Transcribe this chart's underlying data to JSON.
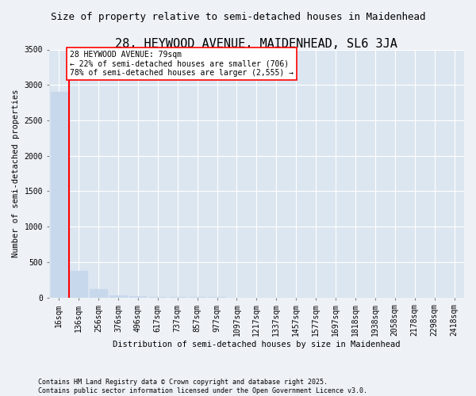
{
  "title": "28, HEYWOOD AVENUE, MAIDENHEAD, SL6 3JA",
  "subtitle": "Size of property relative to semi-detached houses in Maidenhead",
  "xlabel": "Distribution of semi-detached houses by size in Maidenhead",
  "ylabel": "Number of semi-detached properties",
  "categories": [
    "16sqm",
    "136sqm",
    "256sqm",
    "376sqm",
    "496sqm",
    "617sqm",
    "737sqm",
    "857sqm",
    "977sqm",
    "1097sqm",
    "1217sqm",
    "1337sqm",
    "1457sqm",
    "1577sqm",
    "1697sqm",
    "1818sqm",
    "1938sqm",
    "2058sqm",
    "2178sqm",
    "2298sqm",
    "2418sqm"
  ],
  "values": [
    2900,
    380,
    120,
    30,
    15,
    8,
    5,
    4,
    3,
    2,
    2,
    2,
    1,
    1,
    1,
    1,
    1,
    1,
    1,
    1,
    1
  ],
  "bar_color": "#c8d8ec",
  "vline_color": "red",
  "vline_x": 0.5,
  "ylim": [
    0,
    3500
  ],
  "yticks": [
    0,
    500,
    1000,
    1500,
    2000,
    2500,
    3000,
    3500
  ],
  "annotation_text": "28 HEYWOOD AVENUE: 79sqm\n← 22% of semi-detached houses are smaller (706)\n78% of semi-detached houses are larger (2,555) →",
  "footer_line1": "Contains HM Land Registry data © Crown copyright and database right 2025.",
  "footer_line2": "Contains public sector information licensed under the Open Government Licence v3.0.",
  "bg_color": "#eef2f7",
  "plot_bg_color": "#dce6f0",
  "grid_color": "white",
  "title_fontsize": 11,
  "subtitle_fontsize": 9,
  "label_fontsize": 7.5,
  "tick_fontsize": 7,
  "footer_fontsize": 6
}
